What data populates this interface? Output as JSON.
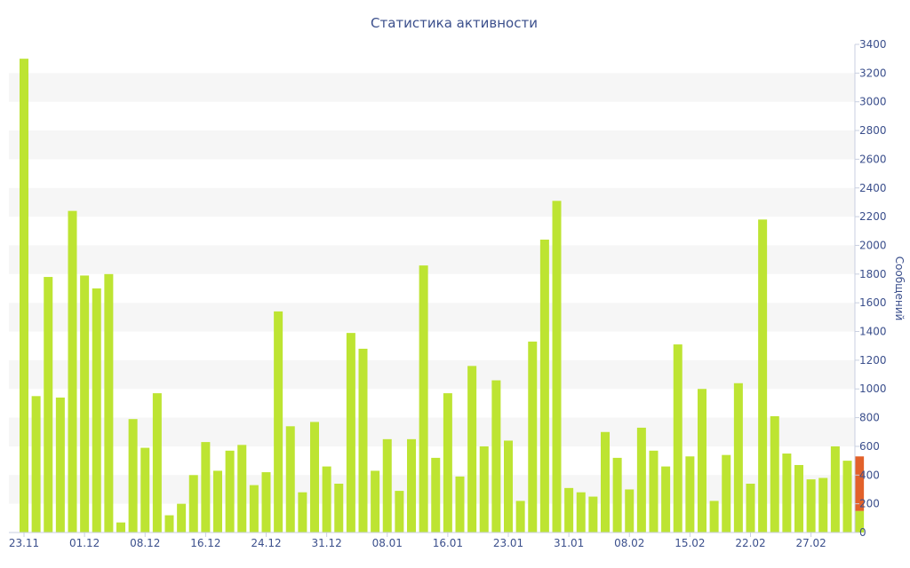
{
  "chart_data": {
    "type": "bar",
    "title": "Статистика активности",
    "ylabel": "Сообщений",
    "ylim": [
      0,
      3400
    ],
    "y_ticks": [
      0,
      200,
      400,
      600,
      800,
      1000,
      1200,
      1400,
      1600,
      1800,
      2000,
      2200,
      2400,
      2600,
      2800,
      3000,
      3200,
      3400
    ],
    "y_axis_side": "right",
    "x_tick_labels": [
      {
        "index": 0,
        "label": "23.11"
      },
      {
        "index": 5,
        "label": "01.12"
      },
      {
        "index": 10,
        "label": "08.12"
      },
      {
        "index": 15,
        "label": "16.12"
      },
      {
        "index": 20,
        "label": "24.12"
      },
      {
        "index": 25,
        "label": "31.12"
      },
      {
        "index": 30,
        "label": "08.01"
      },
      {
        "index": 35,
        "label": "16.01"
      },
      {
        "index": 40,
        "label": "23.01"
      },
      {
        "index": 45,
        "label": "31.01"
      },
      {
        "index": 50,
        "label": "08.02"
      },
      {
        "index": 55,
        "label": "15.02"
      },
      {
        "index": 60,
        "label": "22.02"
      },
      {
        "index": 65,
        "label": "27.02"
      }
    ],
    "bar_color": "#bde432",
    "highlight_color": "#e2612a",
    "grid_band_color": "#f6f6f6",
    "values": [
      3300,
      950,
      1780,
      940,
      2240,
      1790,
      1700,
      1800,
      70,
      790,
      590,
      970,
      120,
      200,
      400,
      630,
      430,
      570,
      610,
      330,
      420,
      1540,
      740,
      280,
      770,
      460,
      340,
      1390,
      1280,
      430,
      650,
      290,
      650,
      1860,
      520,
      970,
      390,
      1160,
      600,
      1060,
      640,
      220,
      1330,
      2040,
      2310,
      310,
      280,
      250,
      700,
      520,
      300,
      730,
      570,
      460,
      1310,
      530,
      1000,
      220,
      540,
      1040,
      340,
      2180,
      810,
      550,
      470,
      370,
      380,
      600,
      500,
      530
    ],
    "last_bar_split": {
      "lower": 150,
      "upper": 380
    }
  }
}
